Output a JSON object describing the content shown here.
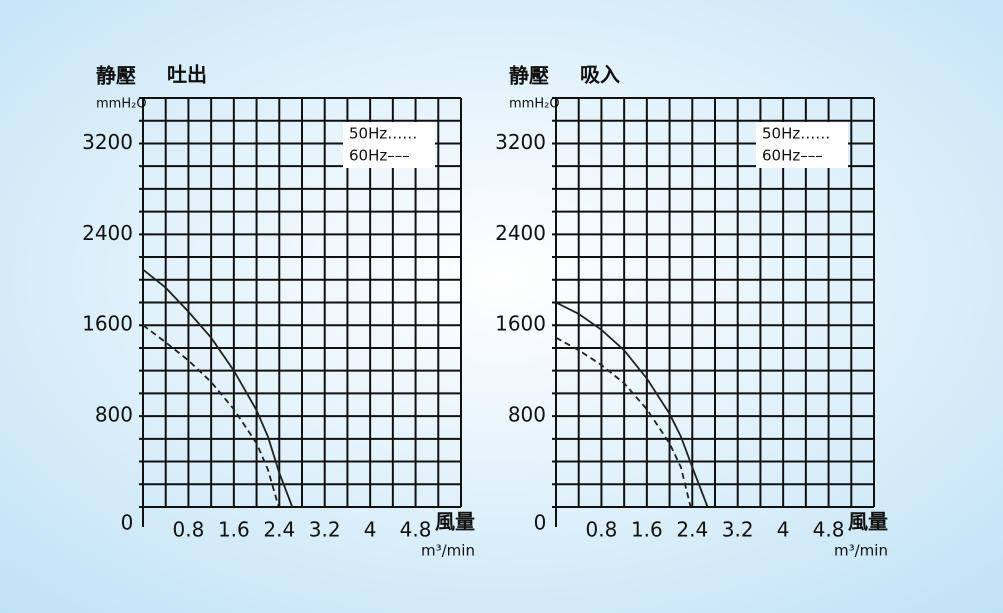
{
  "chart_data": [
    {
      "type": "line",
      "title": "吐出",
      "y_label": "静壓",
      "y_unit": "mmH₂O",
      "x_label": "風量",
      "x_unit": "m³/min",
      "xlim": [
        0,
        5.6
      ],
      "ylim": [
        0,
        3600
      ],
      "xticks": [
        0,
        0.8,
        1.6,
        2.4,
        3.2,
        4.0,
        4.8
      ],
      "yticks": [
        800,
        1600,
        2400,
        3200
      ],
      "xgrid": [
        0.4,
        0.8,
        1.2,
        1.6,
        2.0,
        2.4,
        2.8,
        3.2,
        3.6,
        4.0,
        4.4,
        4.8,
        5.2,
        5.6
      ],
      "ygrid": [
        200,
        400,
        600,
        800,
        1000,
        1200,
        1400,
        1600,
        1800,
        2000,
        2200,
        2400,
        2600,
        2800,
        3000,
        3200,
        3400,
        3600
      ],
      "series": [
        {
          "name": "50Hz……",
          "color": "#222222",
          "style": "solid",
          "x": [
            0,
            0.4,
            0.8,
            1.2,
            1.6,
            2.0,
            2.2,
            2.4,
            2.63
          ],
          "values": [
            2090,
            1930,
            1720,
            1490,
            1200,
            850,
            620,
            300,
            0
          ]
        },
        {
          "name": "60Hz–––",
          "color": "#222222",
          "style": "dashed",
          "x": [
            0,
            0.4,
            0.8,
            1.2,
            1.6,
            2.0,
            2.2,
            2.39
          ],
          "values": [
            1600,
            1450,
            1290,
            1100,
            860,
            560,
            330,
            0
          ]
        }
      ]
    },
    {
      "type": "line",
      "title": "吸入",
      "y_label": "静壓",
      "y_unit": "mmH₂O",
      "x_label": "風量",
      "x_unit": "m³/min",
      "xlim": [
        0,
        5.6
      ],
      "ylim": [
        0,
        3600
      ],
      "xticks": [
        0,
        0.8,
        1.6,
        2.4,
        3.2,
        4.0,
        4.8
      ],
      "yticks": [
        800,
        1600,
        2400,
        3200
      ],
      "xgrid": [
        0.4,
        0.8,
        1.2,
        1.6,
        2.0,
        2.4,
        2.8,
        3.2,
        3.6,
        4.0,
        4.4,
        4.8,
        5.2,
        5.6
      ],
      "ygrid": [
        200,
        400,
        600,
        800,
        1000,
        1200,
        1400,
        1600,
        1800,
        2000,
        2200,
        2400,
        2600,
        2800,
        3000,
        3200,
        3400,
        3600
      ],
      "series": [
        {
          "name": "50Hz……",
          "color": "#222222",
          "style": "solid",
          "x": [
            0,
            0.4,
            0.8,
            1.2,
            1.6,
            2.0,
            2.2,
            2.4,
            2.67
          ],
          "values": [
            1800,
            1700,
            1560,
            1380,
            1130,
            820,
            620,
            350,
            0
          ]
        },
        {
          "name": "60Hz–––",
          "color": "#222222",
          "style": "dashed",
          "x": [
            0,
            0.4,
            0.8,
            1.2,
            1.6,
            2.0,
            2.2,
            2.37
          ],
          "values": [
            1490,
            1380,
            1250,
            1090,
            860,
            560,
            350,
            0
          ]
        }
      ]
    }
  ]
}
